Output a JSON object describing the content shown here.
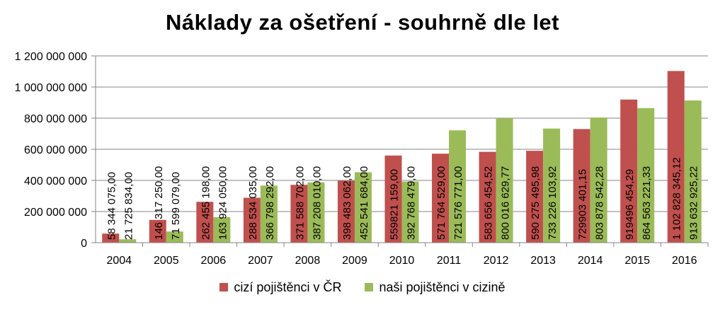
{
  "chart_data": {
    "type": "bar",
    "title": "Náklady za ošetření - souhrně dle let",
    "xlabel": "",
    "ylabel": "",
    "ylim": [
      0,
      1200000000
    ],
    "yticks": [
      0,
      200000000,
      400000000,
      600000000,
      800000000,
      1000000000,
      1200000000
    ],
    "ytick_labels": [
      "0",
      "200 000 000",
      "400 000 000",
      "600 000 000",
      "800 000 000",
      "1 000 000 000",
      "1 200 000 000"
    ],
    "grid": true,
    "legend_position": "bottom",
    "categories": [
      "2004",
      "2005",
      "2006",
      "2007",
      "2008",
      "2009",
      "2010",
      "2011",
      "2012",
      "2013",
      "2014",
      "2015",
      "2016"
    ],
    "series": [
      {
        "name": "cizí pojištěnci v ČR",
        "color": "#c0504d",
        "values": [
          58344075.0,
          146317250.0,
          262455198.0,
          288534035.0,
          371588702.0,
          398483062.0,
          559821159.0,
          571764529.0,
          583656454.52,
          590275495.98,
          729903401.15,
          919496454.29,
          1102828345.12
        ],
        "labels": [
          "58 344 075,00",
          "146 317 250,00",
          "262 455 198,00",
          "288 534 035,00",
          "371 588 702,00",
          "398 483 062,00",
          "559821 159,00",
          "571 764 529,00",
          "583 656 454,52",
          "590 275 495,98",
          "729903 401,15",
          "919496 454,29",
          "1 102 828 345,12"
        ]
      },
      {
        "name": "naši pojištěnci v cizině",
        "color": "#9bbb59",
        "values": [
          21725834.0,
          71599079.0,
          163924050.0,
          366798292.0,
          387208010.0,
          452541684.0,
          392768479.0,
          721576771.0,
          800016629.77,
          733226103.92,
          803878542.28,
          864563221.33,
          913632925.22
        ],
        "labels": [
          "21 725 834,00",
          "71 599 079,00",
          "163 924 050,00",
          "366 798 292,00",
          "387 208 010,00",
          "452 541 684,00",
          "392 768 479,00",
          "721 576 771,00",
          "800 016 629,77",
          "733 226 103,92",
          "803 878 542,28",
          "864 563 221,33",
          "913 632 925,22"
        ]
      }
    ]
  }
}
